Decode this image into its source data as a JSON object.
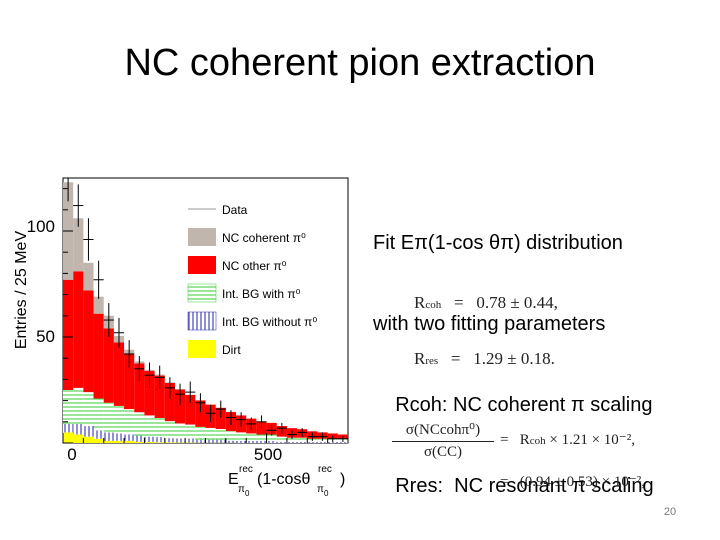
{
  "slide": {
    "title": "NC coherent pion extraction",
    "page_number": "20"
  },
  "description": {
    "line1": "Fit Eπ(1-cos θπ) distribution",
    "line2": "with two fitting parameters",
    "line3": "    Rcoh: NC coherent π scaling",
    "line4": "    Rres:  NC resonant π scaling"
  },
  "equations": {
    "rcoh_sym": "R",
    "rcoh_sub": "coh",
    "rcoh_val": "=   0.78 ± 0.44,",
    "rres_sym": "R",
    "rres_sub": "res",
    "rres_val": "=   1.29 ± 0.18.",
    "ratio_num": "σ(NCcohπ⁰)",
    "ratio_den": "σ(CC)",
    "ratio_line1": "=   R",
    "ratio_line1_sub": "coh",
    "ratio_line1_rest": " × 1.21 × 10⁻²,",
    "ratio_line2": "=   (0.94 ± 0.53) × 10⁻²,"
  },
  "chart_data": {
    "type": "bar",
    "stacked": true,
    "ylabel": "Entries / 25 MeV",
    "xlabel_parts": [
      "E",
      "rec",
      "π",
      "0",
      "(1-cosθ",
      "rec",
      "π",
      "0",
      ")"
    ],
    "x_ticks": [
      "0",
      "500"
    ],
    "y_ticks": [
      "50",
      "100"
    ],
    "xlim": [
      0,
      700
    ],
    "ylim": [
      0,
      125
    ],
    "bin_width": 25,
    "legend_position": "top-right",
    "legend": [
      {
        "label": "Data",
        "style": "data",
        "color": "#000000"
      },
      {
        "label": "NC coherent π⁰",
        "style": "fill",
        "color": "#c0b6ae"
      },
      {
        "label": "NC other π⁰",
        "style": "fill",
        "color": "#ff0000"
      },
      {
        "label": "Int. BG with π⁰",
        "style": "hatch-h",
        "color": "#33cc33"
      },
      {
        "label": "Int. BG without π⁰",
        "style": "hatch-v",
        "color": "#2222aa"
      },
      {
        "label": "Dirt",
        "style": "fill",
        "color": "#ffff00"
      }
    ],
    "bin_starts": [
      0,
      25,
      50,
      75,
      100,
      125,
      150,
      175,
      200,
      225,
      250,
      275,
      300,
      325,
      350,
      375,
      400,
      425,
      450,
      475,
      500,
      525,
      550,
      575,
      600,
      625,
      650,
      675
    ],
    "series": [
      {
        "name": "Dirt",
        "color": "#ffff00",
        "values": [
          5,
          4,
          3,
          2,
          1,
          1,
          1,
          0.5,
          0.5,
          0.3,
          0.3,
          0.2,
          0.2,
          0.1,
          0.1,
          0.1,
          0.1,
          0,
          0,
          0,
          0,
          0,
          0,
          0,
          0,
          0,
          0,
          0
        ]
      },
      {
        "name": "Int. BG without π⁰",
        "color": "#2222aa",
        "values": [
          4,
          5,
          5,
          4,
          4,
          3.5,
          3,
          3,
          2.5,
          2.5,
          2,
          2,
          2,
          1.5,
          1.5,
          1.5,
          1,
          1,
          1,
          1,
          1,
          0.5,
          0.5,
          0.5,
          0.5,
          0.5,
          0.5,
          0.5
        ]
      },
      {
        "name": "Int. BG with π⁰",
        "color": "#33cc33",
        "values": [
          16,
          17,
          16,
          15,
          14,
          13,
          12,
          11,
          10,
          9,
          8,
          7,
          6.5,
          6,
          5.5,
          5,
          4.5,
          4,
          3.5,
          3,
          3,
          2.5,
          2,
          2,
          1.5,
          1.5,
          1.5,
          1.5
        ]
      },
      {
        "name": "NC other π⁰",
        "color": "#ff0000",
        "values": [
          52,
          55,
          48,
          40,
          35,
          30,
          26,
          23,
          21,
          20,
          18,
          16,
          14,
          12.5,
          11,
          10,
          9,
          8,
          7,
          6,
          5.5,
          5,
          4.5,
          4,
          3.5,
          3,
          2.5,
          2
        ]
      },
      {
        "name": "NC coherent π⁰",
        "color": "#c0b6ae",
        "values": [
          46,
          25,
          13,
          8,
          6,
          3,
          2,
          1,
          0.5,
          0.5,
          0.3,
          0.3,
          0,
          0,
          0,
          0,
          0,
          0,
          0,
          0,
          0,
          0,
          0,
          0,
          0,
          0,
          0,
          0
        ]
      }
    ],
    "data_points": [
      {
        "x": 12.5,
        "y": 125,
        "err": 11
      },
      {
        "x": 37.5,
        "y": 112,
        "err": 10
      },
      {
        "x": 62.5,
        "y": 96,
        "err": 10
      },
      {
        "x": 87.5,
        "y": 77,
        "err": 9
      },
      {
        "x": 112.5,
        "y": 58,
        "err": 8
      },
      {
        "x": 137.5,
        "y": 52,
        "err": 7
      },
      {
        "x": 162.5,
        "y": 42,
        "err": 6.5
      },
      {
        "x": 187.5,
        "y": 35,
        "err": 6
      },
      {
        "x": 212.5,
        "y": 32,
        "err": 6
      },
      {
        "x": 237.5,
        "y": 31,
        "err": 5.5
      },
      {
        "x": 262.5,
        "y": 26,
        "err": 5
      },
      {
        "x": 287.5,
        "y": 23,
        "err": 5
      },
      {
        "x": 312.5,
        "y": 24,
        "err": 5
      },
      {
        "x": 337.5,
        "y": 19,
        "err": 4.5
      },
      {
        "x": 362.5,
        "y": 14,
        "err": 4
      },
      {
        "x": 387.5,
        "y": 16,
        "err": 4
      },
      {
        "x": 412.5,
        "y": 12,
        "err": 3.5
      },
      {
        "x": 437.5,
        "y": 11,
        "err": 3.5
      },
      {
        "x": 462.5,
        "y": 9,
        "err": 3
      },
      {
        "x": 487.5,
        "y": 10,
        "err": 3
      },
      {
        "x": 512.5,
        "y": 6,
        "err": 2.5
      },
      {
        "x": 537.5,
        "y": 7,
        "err": 2.5
      },
      {
        "x": 562.5,
        "y": 4,
        "err": 2
      },
      {
        "x": 587.5,
        "y": 5,
        "err": 2
      },
      {
        "x": 612.5,
        "y": 3,
        "err": 2
      },
      {
        "x": 637.5,
        "y": 3,
        "err": 2
      },
      {
        "x": 662.5,
        "y": 2,
        "err": 1.5
      },
      {
        "x": 687.5,
        "y": 2,
        "err": 1.5
      }
    ]
  }
}
